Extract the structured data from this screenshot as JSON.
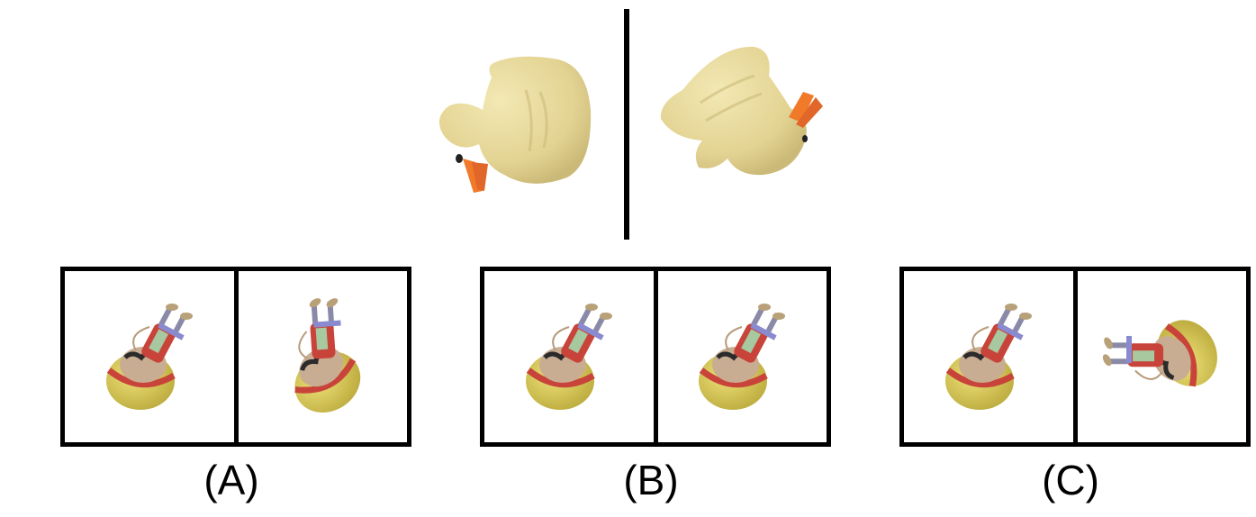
{
  "reference": {
    "left_image": "yellow-rubber-duck-view-1",
    "right_image": "yellow-rubber-duck-view-2"
  },
  "options": [
    {
      "label": "(A)",
      "left_image": "toy-figure-view",
      "right_image": "toy-figure-view"
    },
    {
      "label": "(B)",
      "left_image": "toy-figure-view",
      "right_image": "toy-figure-view"
    },
    {
      "label": "(C)",
      "left_image": "toy-figure-view",
      "right_image": "toy-figure-view"
    }
  ],
  "colors": {
    "duck_body": "#e7d99a",
    "duck_beak": "#f07a2a",
    "toy_red": "#c8443a",
    "toy_yellow": "#d8c94a",
    "toy_skin": "#c8ad92"
  }
}
